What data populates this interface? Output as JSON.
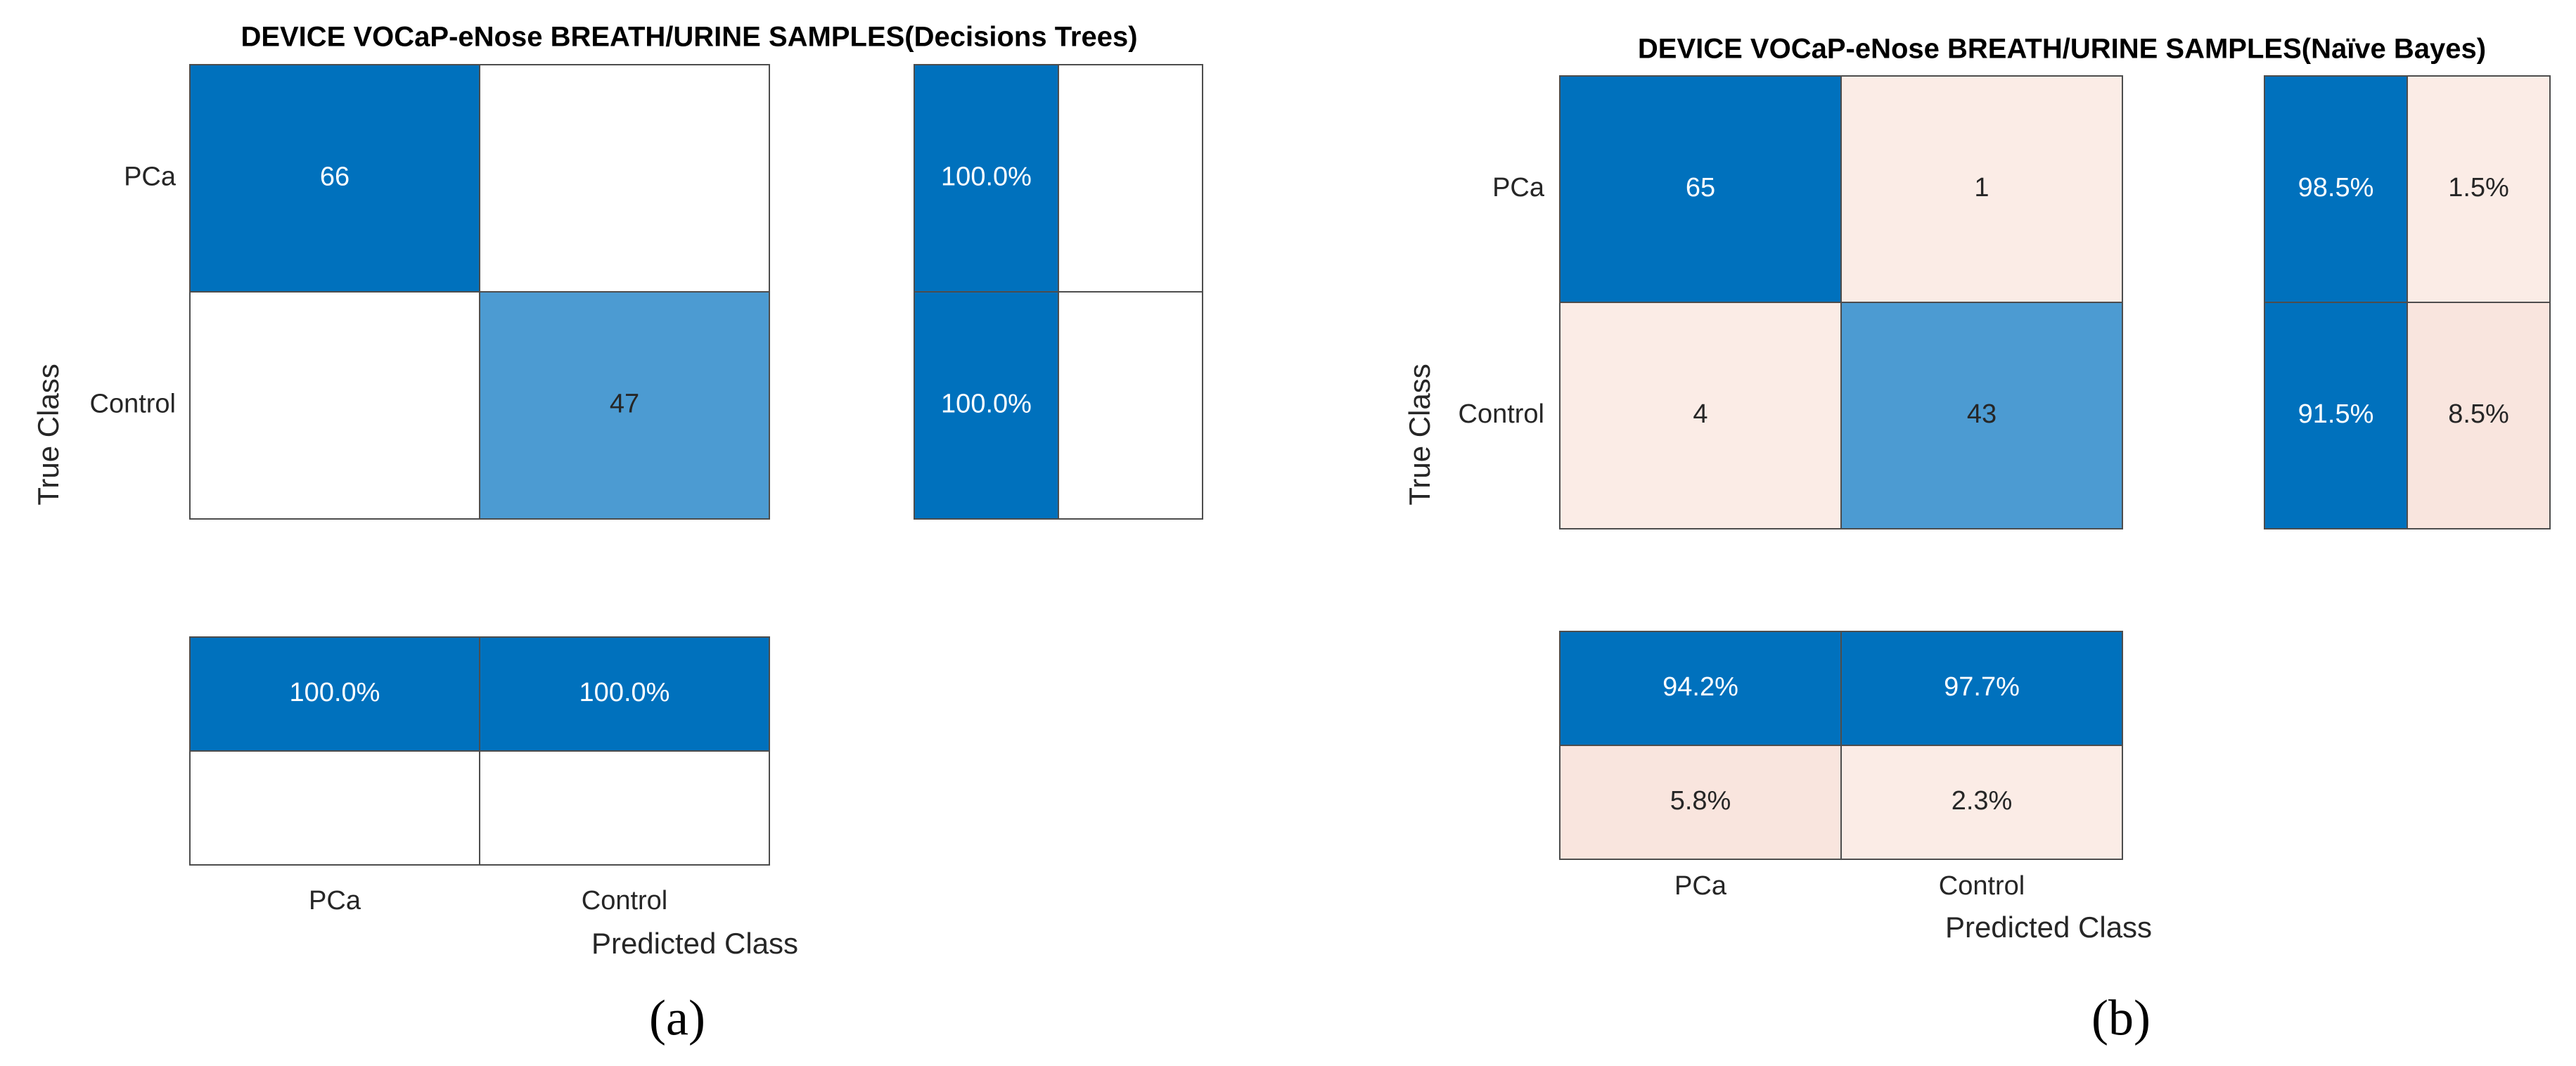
{
  "chart_data": [
    {
      "type": "heatmap",
      "subtype": "confusion_matrix",
      "title": "DEVICE VOCaP-eNose BREATH/URINE SAMPLES(Decisions Trees)",
      "xlabel": "Predicted Class",
      "ylabel": "True Class",
      "classes": [
        "PCa",
        "Control"
      ],
      "matrix": [
        [
          66,
          null
        ],
        [
          null,
          47
        ]
      ],
      "row_summary": [
        [
          "100.0%",
          ""
        ],
        [
          "100.0%",
          ""
        ]
      ],
      "column_summary": [
        [
          "100.0%",
          "100.0%"
        ],
        [
          "",
          ""
        ]
      ],
      "panel_label": "(a)"
    },
    {
      "type": "heatmap",
      "subtype": "confusion_matrix",
      "title": "DEVICE VOCaP-eNose BREATH/URINE SAMPLES(Naïve Bayes)",
      "xlabel": "Predicted Class",
      "ylabel": "True Class",
      "classes": [
        "PCa",
        "Control"
      ],
      "matrix": [
        [
          65,
          1
        ],
        [
          4,
          43
        ]
      ],
      "row_summary": [
        [
          "98.5%",
          "1.5%"
        ],
        [
          "91.5%",
          "8.5%"
        ]
      ],
      "column_summary": [
        [
          "94.2%",
          "97.7%"
        ],
        [
          "5.8%",
          "2.3%"
        ]
      ],
      "panel_label": "(b)"
    }
  ],
  "colors": {
    "dark_blue": "#0071bd",
    "mid_blue": "#4c9bd2",
    "light_pink": "#fbece6",
    "medium_pink": "#f9e5de",
    "white": "#ffffff",
    "border": "#4d4d4d"
  }
}
